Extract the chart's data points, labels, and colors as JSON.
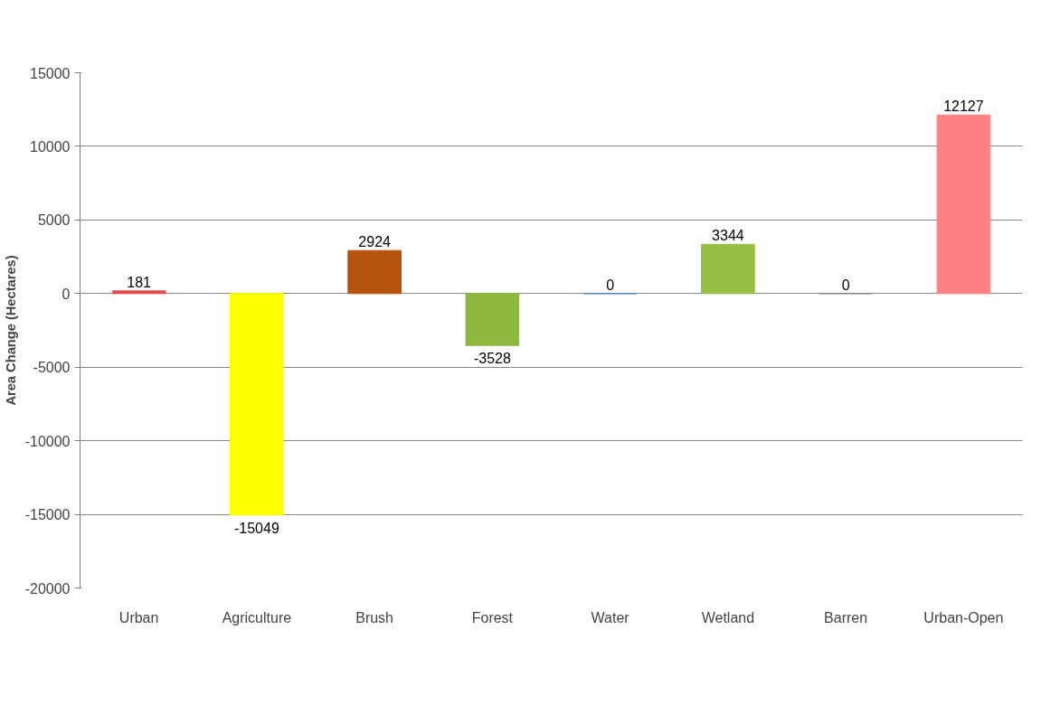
{
  "chart_data": {
    "type": "bar",
    "ylabel": "Area Change (Hectares)",
    "categories": [
      "Urban",
      "Agriculture",
      "Brush",
      "Forest",
      "Water",
      "Wetland",
      "Barren",
      "Urban-Open"
    ],
    "values": [
      181,
      -15049,
      2924,
      -3528,
      0,
      3344,
      0,
      12127
    ],
    "colors": [
      "#e84a4a",
      "#ffff00",
      "#b5540f",
      "#8db83e",
      "#4f81bd",
      "#96c044",
      "#808080",
      "#ff8282"
    ],
    "ylim": [
      -20000,
      15000
    ],
    "yticks": [
      -20000,
      -15000,
      -10000,
      -5000,
      0,
      5000,
      10000,
      15000
    ],
    "grid": "y",
    "data_labels": true
  }
}
